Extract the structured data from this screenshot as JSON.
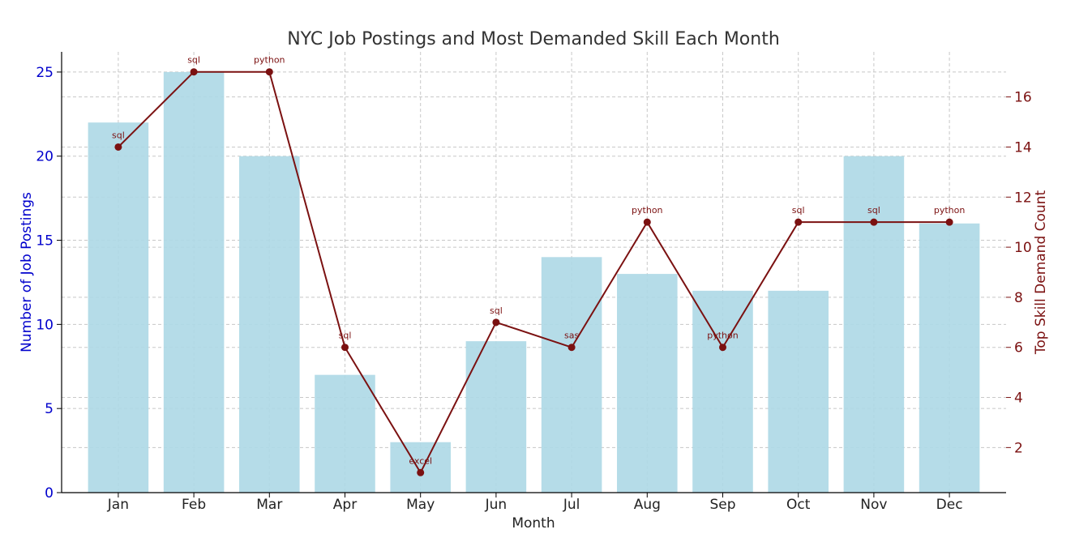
{
  "chart_data": {
    "type": "bar+line",
    "title": "NYC Job Postings and Most Demanded Skill Each Month",
    "xlabel": "Month",
    "ylabel_left": "Number of Job Postings",
    "ylabel_right": "Top Skill Demand Count",
    "categories": [
      "Jan",
      "Feb",
      "Mar",
      "Apr",
      "May",
      "Jun",
      "Jul",
      "Aug",
      "Sep",
      "Oct",
      "Nov",
      "Dec"
    ],
    "left_axis": {
      "ylim": [
        0,
        26.2
      ],
      "ticks": [
        0,
        5,
        10,
        15,
        20,
        25
      ]
    },
    "right_axis": {
      "ylim": [
        0.2,
        17.8
      ],
      "ticks": [
        2,
        4,
        6,
        8,
        10,
        12,
        14,
        16
      ]
    },
    "series": [
      {
        "name": "Number of Job Postings",
        "type": "bar",
        "axis": "left",
        "color": "#add8e6",
        "values": [
          22,
          25,
          20,
          7,
          3,
          9,
          14,
          13,
          12,
          12,
          20,
          16
        ]
      },
      {
        "name": "Top Skill Demand Count",
        "type": "line",
        "axis": "right",
        "color": "#7b1111",
        "values": [
          14,
          17,
          17,
          6,
          1,
          7,
          6,
          11,
          6,
          11,
          11,
          11
        ],
        "labels": [
          "sql",
          "sql",
          "python",
          "sql",
          "excel",
          "sql",
          "sas",
          "python",
          "python",
          "sql",
          "sql",
          "python"
        ]
      }
    ],
    "grid": true,
    "colors": {
      "left_axis": "#0000cc",
      "right_axis": "#7b1111",
      "text": "#222222"
    }
  }
}
